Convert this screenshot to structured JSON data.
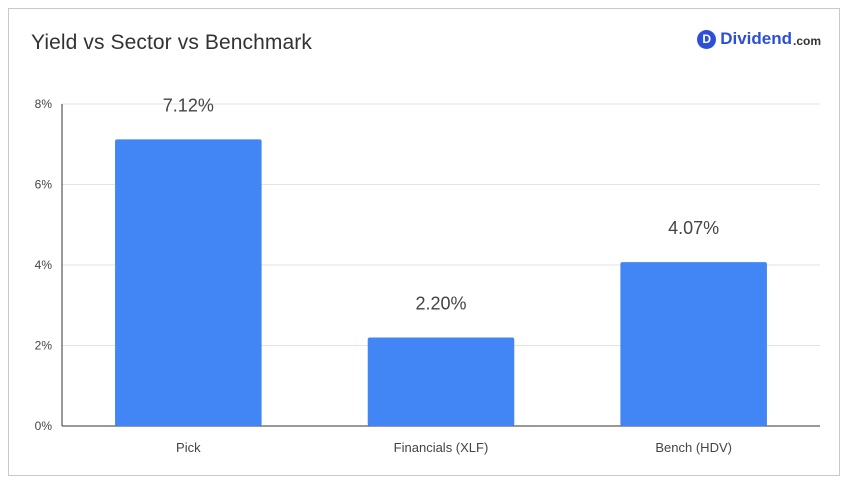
{
  "header": {
    "title": "Yield vs Sector vs Benchmark",
    "brand_badge": "D",
    "brand_name": "Dividend",
    "brand_suffix": ".com"
  },
  "colors": {
    "bar": "#4285f4",
    "grid": "#e3e3e3",
    "axis": "#333333",
    "text": "#444444",
    "brand": "#2d4fd6"
  },
  "chart_data": {
    "type": "bar",
    "title": "Yield vs Sector vs Benchmark",
    "categories": [
      "Pick",
      "Financials (XLF)",
      "Bench (HDV)"
    ],
    "values": [
      7.12,
      2.2,
      4.07
    ],
    "data_labels": [
      "7.12%",
      "2.20%",
      "4.07%"
    ],
    "y_ticks": [
      0,
      2,
      4,
      6,
      8
    ],
    "y_tick_labels": [
      "0%",
      "2%",
      "4%",
      "6%",
      "8%"
    ],
    "ylim": [
      0,
      8
    ],
    "xlabel": "",
    "ylabel": "",
    "grid": true,
    "legend": "none"
  }
}
